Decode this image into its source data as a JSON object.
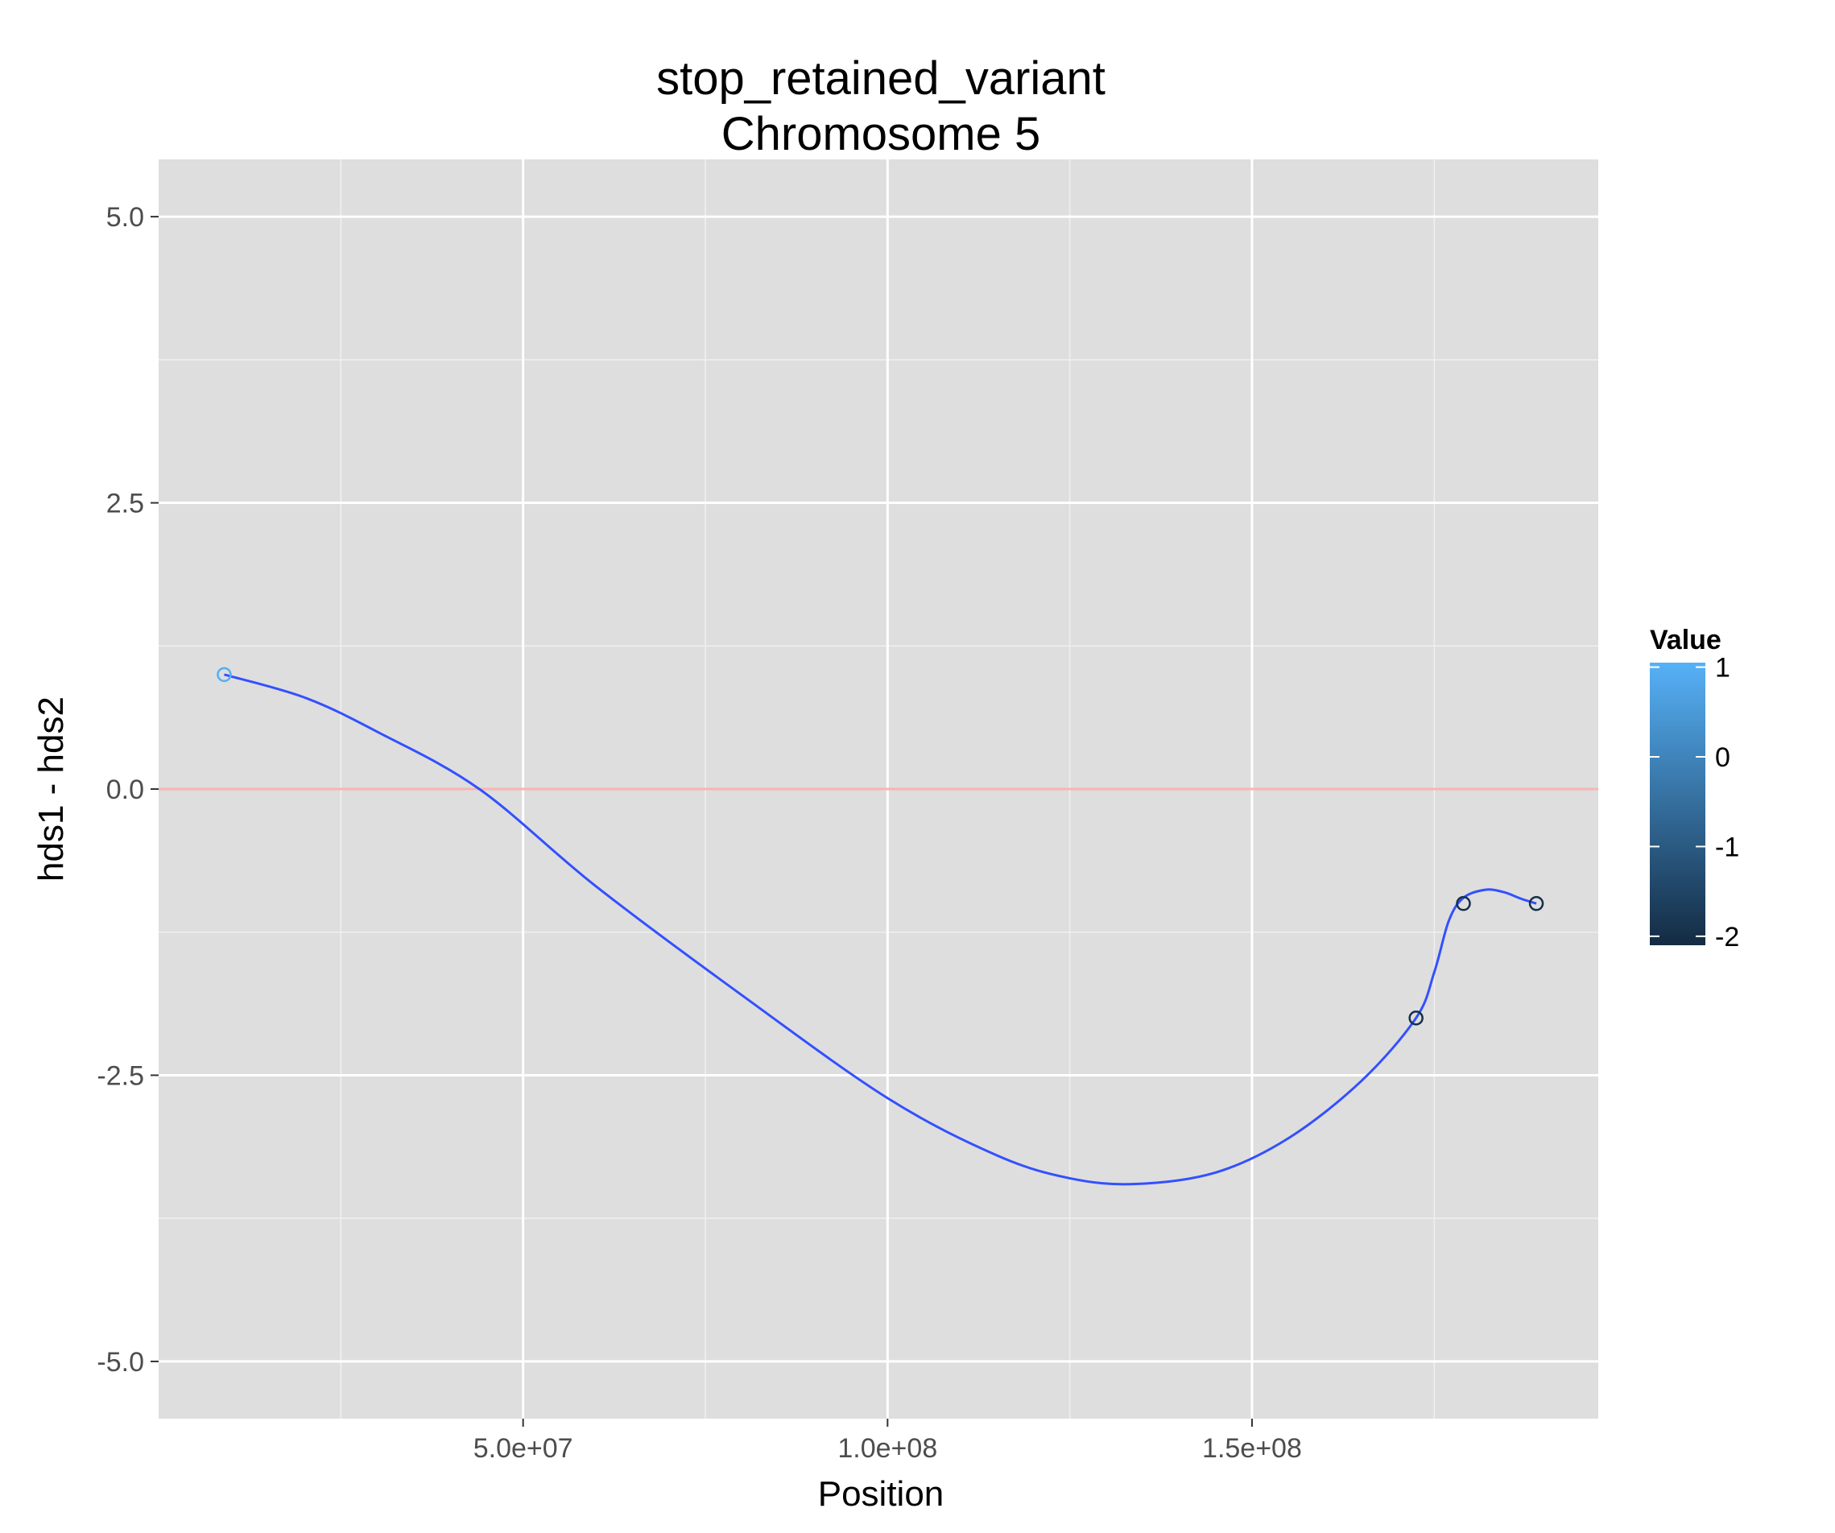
{
  "chart_data": {
    "type": "line",
    "title": "stop_retained_variant",
    "subtitle": "Chromosome 5",
    "xlabel": "Position",
    "ylabel": "hds1 - hds2",
    "xlim": [
      0,
      197500000
    ],
    "ylim": [
      -5.5,
      5.5
    ],
    "x_ticks": [
      {
        "value": 50000000,
        "label": "5.0e+07"
      },
      {
        "value": 100000000,
        "label": "1.0e+08"
      },
      {
        "value": 150000000,
        "label": "1.5e+08"
      }
    ],
    "x_minor": [
      25000000,
      75000000,
      125000000,
      175000000
    ],
    "y_ticks": [
      {
        "value": 5,
        "label": "5.0"
      },
      {
        "value": 2.5,
        "label": "2.5"
      },
      {
        "value": 0,
        "label": "0.0"
      },
      {
        "value": -2.5,
        "label": "-2.5"
      },
      {
        "value": -5,
        "label": "-5.0"
      }
    ],
    "y_minor": [
      3.75,
      1.25,
      -1.25,
      -3.75
    ],
    "reference_line": {
      "y": 0,
      "color": "#f8b4b4"
    },
    "grid": true,
    "panel_background": "#dedede",
    "points": [
      {
        "x": 9000000,
        "y": 1,
        "value": 1
      },
      {
        "x": 172500000,
        "y": -2,
        "value": -2
      },
      {
        "x": 179000000,
        "y": -1,
        "value": -2
      },
      {
        "x": 189000000,
        "y": -1,
        "value": -2
      }
    ],
    "smooth_line": {
      "color": "#3350ff",
      "points": [
        [
          9000000,
          1.0
        ],
        [
          20000000,
          0.8
        ],
        [
          30000000,
          0.5
        ],
        [
          44000000,
          0.0
        ],
        [
          60000000,
          -0.85
        ],
        [
          80000000,
          -1.8
        ],
        [
          100000000,
          -2.7
        ],
        [
          115000000,
          -3.2
        ],
        [
          125000000,
          -3.4
        ],
        [
          134000000,
          -3.45
        ],
        [
          145000000,
          -3.35
        ],
        [
          155000000,
          -3.05
        ],
        [
          165000000,
          -2.55
        ],
        [
          172500000,
          -2.0
        ],
        [
          175000000,
          -1.6
        ],
        [
          177000000,
          -1.15
        ],
        [
          179000000,
          -0.95
        ],
        [
          182000000,
          -0.88
        ],
        [
          184500000,
          -0.9
        ],
        [
          187000000,
          -0.96
        ],
        [
          189000000,
          -1.0
        ]
      ]
    },
    "legend": {
      "title": "Value",
      "placement": "right",
      "labels": [
        {
          "value": 1,
          "label": "1"
        },
        {
          "value": 0,
          "label": "0"
        },
        {
          "value": -1,
          "label": "-1"
        },
        {
          "value": -2,
          "label": "-2"
        }
      ],
      "range": [
        -2.1,
        1.05
      ],
      "color_low": "#132b43",
      "color_high": "#56b1f7"
    }
  }
}
